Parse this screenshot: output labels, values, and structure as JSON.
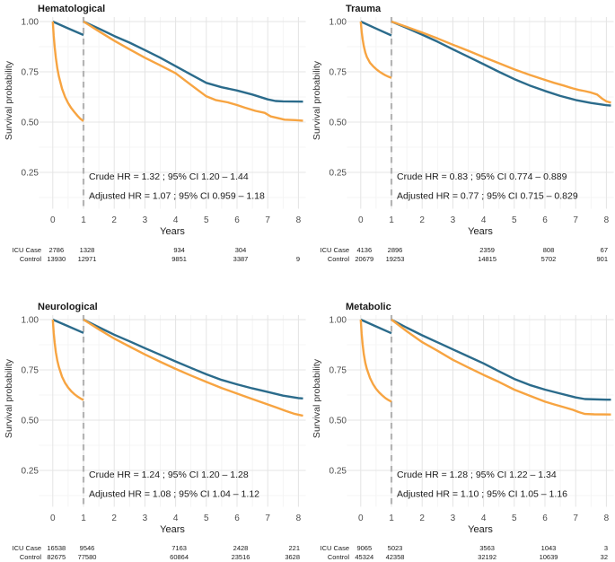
{
  "figure": {
    "ylabel": "Survival probability",
    "xlabel": "Years",
    "y_tick_labels": [
      "1.00",
      "0.75",
      "0.50",
      "0.25"
    ],
    "y_tick_values": [
      1.0,
      0.75,
      0.5,
      0.25
    ],
    "x_tick_labels": [
      "0",
      "1",
      "2",
      "3",
      "4",
      "5",
      "6",
      "7",
      "8"
    ],
    "x_tick_values": [
      0,
      1,
      2,
      3,
      4,
      5,
      6,
      7,
      8
    ],
    "colors": {
      "blue_curve": "#2b6b8b",
      "orange_curve": "#f7a441",
      "landmark_dash": "#b4b4b4",
      "grid_major": "#e4e4e4",
      "grid_minor": "#f2f2f2",
      "text_dark": "#1a1a1a",
      "text_tick": "#4d4d4d",
      "background": "#ffffff"
    }
  },
  "chart_data": [
    {
      "type": "line",
      "title": "Hematological",
      "xlabel": "Years",
      "ylabel": "Survival probability",
      "xlim": [
        0,
        8
      ],
      "ylim": [
        0.25,
        1.0
      ],
      "landmark_x": 1,
      "grid": true,
      "legend": "none",
      "annotations": {
        "crude": "Crude HR = 1.32 ; 95% CI 1.20 – 1.44",
        "adjusted": "Adjusted HR = 1.07 ; 95% CI 0.959 – 1.18"
      },
      "series": [
        {
          "name": "Control",
          "color": "#2b6b8b",
          "pre": [
            [
              0,
              1.0
            ],
            [
              0.5,
              0.966
            ],
            [
              1,
              0.933
            ]
          ],
          "post": [
            [
              1,
              1.0
            ],
            [
              1.5,
              0.965
            ],
            [
              2,
              0.928
            ],
            [
              2.5,
              0.895
            ],
            [
              3,
              0.858
            ],
            [
              3.5,
              0.82
            ],
            [
              4,
              0.778
            ],
            [
              4.5,
              0.736
            ],
            [
              5,
              0.695
            ],
            [
              5.5,
              0.673
            ],
            [
              6,
              0.657
            ],
            [
              6.5,
              0.637
            ],
            [
              7,
              0.613
            ],
            [
              7.25,
              0.605
            ],
            [
              7.5,
              0.603
            ],
            [
              8.15,
              0.602
            ]
          ]
        },
        {
          "name": "ICU Case",
          "color": "#f7a441",
          "pre": [
            [
              0,
              1.0
            ],
            [
              0.03,
              0.93
            ],
            [
              0.06,
              0.873
            ],
            [
              0.1,
              0.82
            ],
            [
              0.15,
              0.766
            ],
            [
              0.2,
              0.727
            ],
            [
              0.3,
              0.666
            ],
            [
              0.4,
              0.625
            ],
            [
              0.5,
              0.594
            ],
            [
              0.6,
              0.57
            ],
            [
              0.7,
              0.551
            ],
            [
              0.8,
              0.532
            ],
            [
              0.9,
              0.516
            ],
            [
              1,
              0.505
            ]
          ],
          "post": [
            [
              1,
              1.0
            ],
            [
              1.5,
              0.952
            ],
            [
              2,
              0.905
            ],
            [
              2.5,
              0.862
            ],
            [
              3,
              0.82
            ],
            [
              3.5,
              0.782
            ],
            [
              4,
              0.743
            ],
            [
              4.5,
              0.685
            ],
            [
              5,
              0.628
            ],
            [
              5.3,
              0.61
            ],
            [
              5.7,
              0.598
            ],
            [
              6,
              0.585
            ],
            [
              6.25,
              0.572
            ],
            [
              6.6,
              0.556
            ],
            [
              6.9,
              0.546
            ],
            [
              7.1,
              0.528
            ],
            [
              7.35,
              0.519
            ],
            [
              7.55,
              0.512
            ],
            [
              7.9,
              0.51
            ],
            [
              8.15,
              0.507
            ]
          ]
        }
      ],
      "risk_table": {
        "times": [
          0,
          1,
          4,
          6,
          8
        ],
        "rows": [
          {
            "label": "ICU Case",
            "values": [
              "2786",
              "1328",
              "934",
              "304",
              ""
            ]
          },
          {
            "label": "Control",
            "values": [
              "13930",
              "12971",
              "9851",
              "3387",
              "9"
            ]
          }
        ]
      }
    },
    {
      "type": "line",
      "title": "Trauma",
      "xlabel": "Years",
      "ylabel": "Survival probability",
      "xlim": [
        0,
        8
      ],
      "ylim": [
        0.25,
        1.0
      ],
      "landmark_x": 1,
      "grid": true,
      "legend": "none",
      "annotations": {
        "crude": "Crude HR = 0.83 ; 95% CI 0.774 – 0.889",
        "adjusted": "Adjusted HR = 0.77 ; 95% CI 0.715 – 0.829"
      },
      "series": [
        {
          "name": "Control",
          "color": "#2b6b8b",
          "pre": [
            [
              0,
              1.0
            ],
            [
              0.5,
              0.965
            ],
            [
              1,
              0.931
            ]
          ],
          "post": [
            [
              1,
              1.0
            ],
            [
              1.5,
              0.968
            ],
            [
              2,
              0.935
            ],
            [
              2.5,
              0.9
            ],
            [
              3,
              0.862
            ],
            [
              3.5,
              0.825
            ],
            [
              4,
              0.788
            ],
            [
              4.5,
              0.75
            ],
            [
              5,
              0.714
            ],
            [
              5.5,
              0.682
            ],
            [
              6,
              0.655
            ],
            [
              6.5,
              0.63
            ],
            [
              7,
              0.61
            ],
            [
              7.5,
              0.595
            ],
            [
              8,
              0.584
            ],
            [
              8.15,
              0.582
            ]
          ]
        },
        {
          "name": "ICU Case",
          "color": "#f7a441",
          "pre": [
            [
              0,
              1.0
            ],
            [
              0.03,
              0.95
            ],
            [
              0.06,
              0.912
            ],
            [
              0.1,
              0.878
            ],
            [
              0.15,
              0.846
            ],
            [
              0.2,
              0.824
            ],
            [
              0.3,
              0.795
            ],
            [
              0.4,
              0.778
            ],
            [
              0.5,
              0.764
            ],
            [
              0.6,
              0.752
            ],
            [
              0.7,
              0.742
            ],
            [
              0.8,
              0.733
            ],
            [
              0.9,
              0.726
            ],
            [
              1,
              0.72
            ]
          ],
          "post": [
            [
              1,
              1.0
            ],
            [
              1.5,
              0.973
            ],
            [
              2,
              0.945
            ],
            [
              2.5,
              0.916
            ],
            [
              3,
              0.885
            ],
            [
              3.5,
              0.855
            ],
            [
              4,
              0.823
            ],
            [
              4.5,
              0.793
            ],
            [
              5,
              0.762
            ],
            [
              5.5,
              0.735
            ],
            [
              6,
              0.71
            ],
            [
              6.3,
              0.695
            ],
            [
              6.6,
              0.682
            ],
            [
              6.9,
              0.668
            ],
            [
              7.1,
              0.66
            ],
            [
              7.3,
              0.654
            ],
            [
              7.5,
              0.647
            ],
            [
              7.7,
              0.637
            ],
            [
              7.85,
              0.618
            ],
            [
              8,
              0.603
            ],
            [
              8.15,
              0.597
            ]
          ]
        }
      ],
      "risk_table": {
        "times": [
          0,
          1,
          4,
          6,
          8
        ],
        "rows": [
          {
            "label": "ICU Case",
            "values": [
              "4136",
              "2896",
              "2359",
              "808",
              "67"
            ]
          },
          {
            "label": "Control",
            "values": [
              "20679",
              "19253",
              "14815",
              "5702",
              "901"
            ]
          }
        ]
      }
    },
    {
      "type": "line",
      "title": "Neurological",
      "xlabel": "Years",
      "ylabel": "Survival probability",
      "xlim": [
        0,
        8
      ],
      "ylim": [
        0.25,
        1.0
      ],
      "landmark_x": 1,
      "grid": true,
      "legend": "none",
      "annotations": {
        "crude": "Crude HR = 1.24 ; 95% CI 1.20 – 1.28",
        "adjusted": "Adjusted HR = 1.08 ; 95% CI 1.04 – 1.12"
      },
      "series": [
        {
          "name": "Control",
          "color": "#2b6b8b",
          "pre": [
            [
              0,
              1.0
            ],
            [
              0.5,
              0.967
            ],
            [
              1,
              0.934
            ]
          ],
          "post": [
            [
              1,
              1.0
            ],
            [
              1.5,
              0.962
            ],
            [
              2,
              0.925
            ],
            [
              2.5,
              0.892
            ],
            [
              3,
              0.858
            ],
            [
              3.5,
              0.825
            ],
            [
              4,
              0.792
            ],
            [
              4.5,
              0.76
            ],
            [
              5,
              0.728
            ],
            [
              5.5,
              0.7
            ],
            [
              6,
              0.678
            ],
            [
              6.5,
              0.658
            ],
            [
              7,
              0.64
            ],
            [
              7.5,
              0.622
            ],
            [
              8,
              0.61
            ],
            [
              8.15,
              0.608
            ]
          ]
        },
        {
          "name": "ICU Case",
          "color": "#f7a441",
          "pre": [
            [
              0,
              1.0
            ],
            [
              0.03,
              0.935
            ],
            [
              0.06,
              0.885
            ],
            [
              0.1,
              0.838
            ],
            [
              0.15,
              0.795
            ],
            [
              0.2,
              0.764
            ],
            [
              0.3,
              0.716
            ],
            [
              0.4,
              0.685
            ],
            [
              0.5,
              0.662
            ],
            [
              0.6,
              0.644
            ],
            [
              0.7,
              0.63
            ],
            [
              0.8,
              0.618
            ],
            [
              0.9,
              0.608
            ],
            [
              1,
              0.6
            ]
          ],
          "post": [
            [
              1,
              1.0
            ],
            [
              1.5,
              0.952
            ],
            [
              2,
              0.906
            ],
            [
              2.5,
              0.866
            ],
            [
              3,
              0.827
            ],
            [
              3.5,
              0.79
            ],
            [
              4,
              0.755
            ],
            [
              4.5,
              0.722
            ],
            [
              5,
              0.69
            ],
            [
              5.5,
              0.66
            ],
            [
              6,
              0.632
            ],
            [
              6.5,
              0.605
            ],
            [
              7,
              0.578
            ],
            [
              7.3,
              0.562
            ],
            [
              7.6,
              0.545
            ],
            [
              7.85,
              0.532
            ],
            [
              8.15,
              0.522
            ]
          ]
        }
      ],
      "risk_table": {
        "times": [
          0,
          1,
          4,
          6,
          8
        ],
        "rows": [
          {
            "label": "ICU Case",
            "values": [
              "16538",
              "9546",
              "7163",
              "2428",
              "221"
            ]
          },
          {
            "label": "Control",
            "values": [
              "82675",
              "77580",
              "60864",
              "23516",
              "3628"
            ]
          }
        ]
      }
    },
    {
      "type": "line",
      "title": "Metabolic",
      "xlabel": "Years",
      "ylabel": "Survival probability",
      "xlim": [
        0,
        8
      ],
      "ylim": [
        0.25,
        1.0
      ],
      "landmark_x": 1,
      "grid": true,
      "legend": "none",
      "annotations": {
        "crude": "Crude HR = 1.28 ; 95% CI 1.22 – 1.34",
        "adjusted": "Adjusted HR = 1.10 ; 95% CI 1.05 – 1.16"
      },
      "series": [
        {
          "name": "Control",
          "color": "#2b6b8b",
          "pre": [
            [
              0,
              1.0
            ],
            [
              0.5,
              0.966
            ],
            [
              1,
              0.932
            ]
          ],
          "post": [
            [
              1,
              1.0
            ],
            [
              1.5,
              0.96
            ],
            [
              2,
              0.922
            ],
            [
              2.5,
              0.887
            ],
            [
              3,
              0.852
            ],
            [
              3.5,
              0.817
            ],
            [
              4,
              0.782
            ],
            [
              4.5,
              0.743
            ],
            [
              5,
              0.705
            ],
            [
              5.5,
              0.675
            ],
            [
              6,
              0.652
            ],
            [
              6.5,
              0.632
            ],
            [
              7,
              0.613
            ],
            [
              7.3,
              0.605
            ],
            [
              8,
              0.602
            ],
            [
              8.15,
              0.602
            ]
          ]
        },
        {
          "name": "ICU Case",
          "color": "#f7a441",
          "pre": [
            [
              0,
              1.0
            ],
            [
              0.03,
              0.93
            ],
            [
              0.06,
              0.877
            ],
            [
              0.1,
              0.828
            ],
            [
              0.15,
              0.785
            ],
            [
              0.2,
              0.755
            ],
            [
              0.3,
              0.71
            ],
            [
              0.4,
              0.679
            ],
            [
              0.5,
              0.656
            ],
            [
              0.6,
              0.638
            ],
            [
              0.7,
              0.623
            ],
            [
              0.8,
              0.61
            ],
            [
              0.9,
              0.6
            ],
            [
              1,
              0.592
            ]
          ],
          "post": [
            [
              1,
              1.0
            ],
            [
              1.5,
              0.942
            ],
            [
              2,
              0.888
            ],
            [
              2.5,
              0.845
            ],
            [
              3,
              0.8
            ],
            [
              3.5,
              0.762
            ],
            [
              4,
              0.725
            ],
            [
              4.5,
              0.69
            ],
            [
              5,
              0.652
            ],
            [
              5.5,
              0.622
            ],
            [
              6,
              0.592
            ],
            [
              6.3,
              0.578
            ],
            [
              6.6,
              0.565
            ],
            [
              6.9,
              0.552
            ],
            [
              7.1,
              0.54
            ],
            [
              7.3,
              0.531
            ],
            [
              7.6,
              0.529
            ],
            [
              8.15,
              0.528
            ]
          ]
        }
      ],
      "risk_table": {
        "times": [
          0,
          1,
          4,
          6,
          8
        ],
        "rows": [
          {
            "label": "ICU Case",
            "values": [
              "9065",
              "5023",
              "3563",
              "1043",
              "3"
            ]
          },
          {
            "label": "Control",
            "values": [
              "45324",
              "42358",
              "32192",
              "10639",
              "32"
            ]
          }
        ]
      }
    }
  ]
}
